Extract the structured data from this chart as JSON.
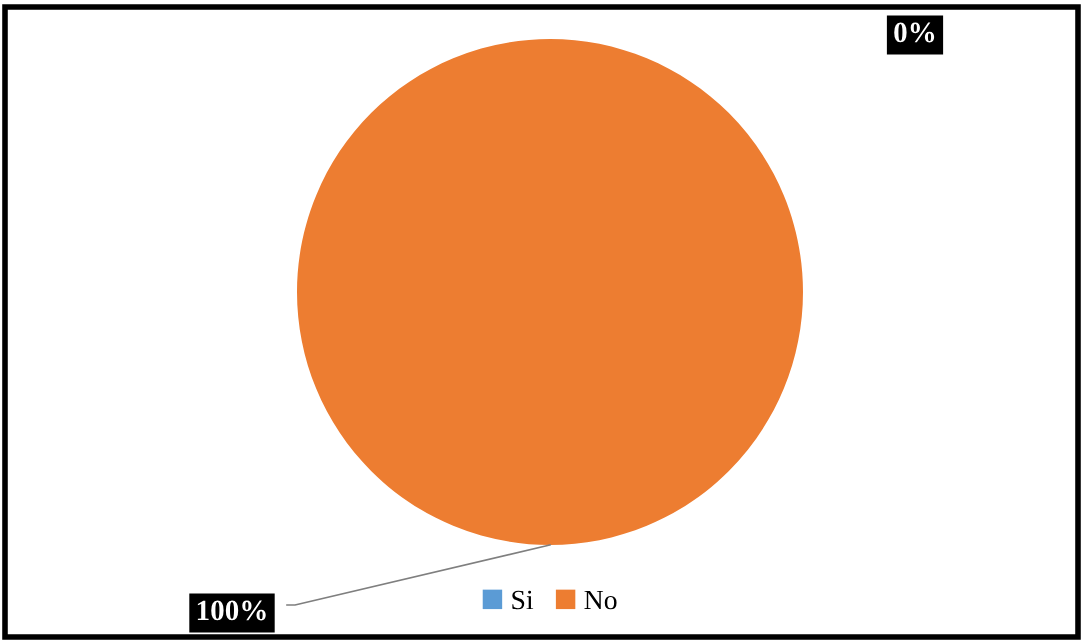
{
  "chart_data": {
    "type": "pie",
    "categories": [
      "Si",
      "No"
    ],
    "values": [
      0,
      100
    ],
    "colors": [
      "#5b9bd5",
      "#ed7d31"
    ],
    "value_labels": [
      "0%",
      "100%"
    ],
    "legend": "bottom"
  }
}
